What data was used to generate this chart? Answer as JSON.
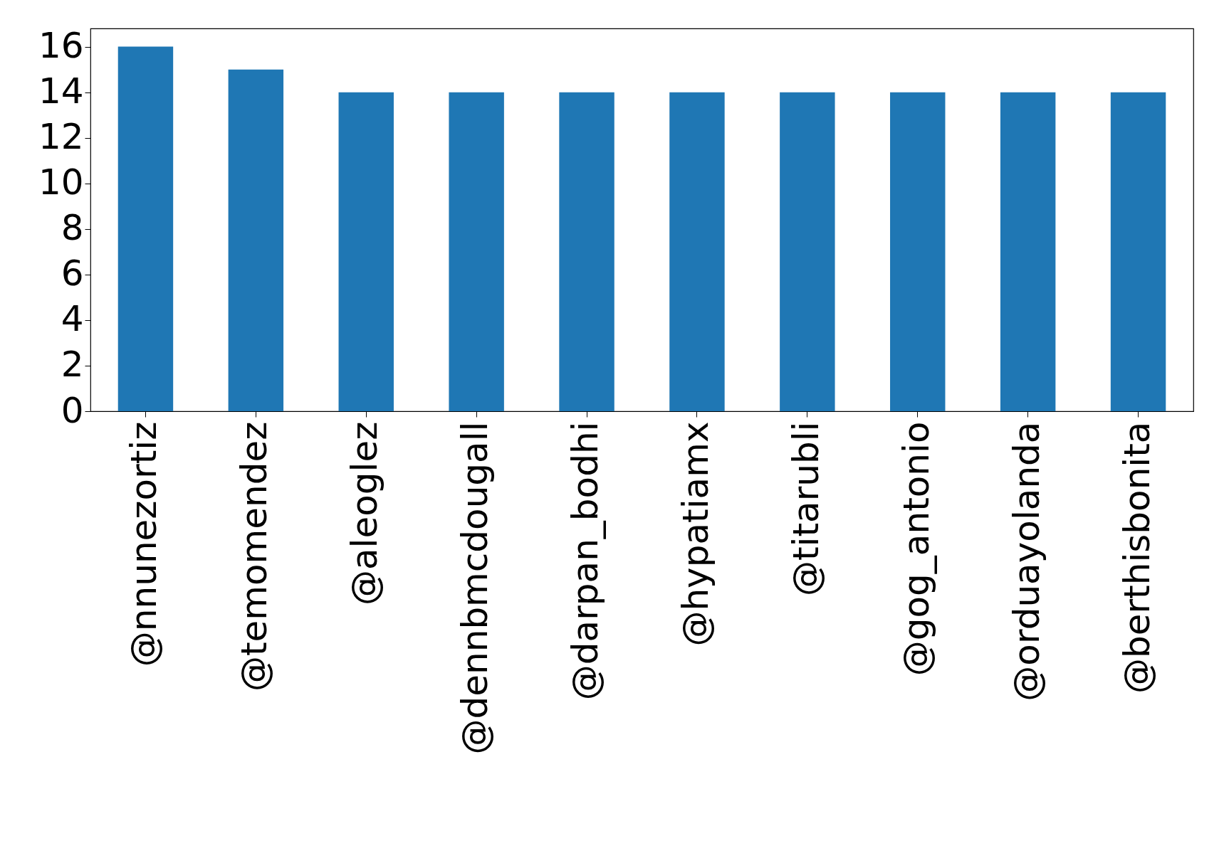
{
  "chart_data": {
    "type": "bar",
    "categories": [
      "@nnunezortiz",
      "@temomendez",
      "@aleoglez",
      "@dennbmcdougall",
      "@darpan_bodhi",
      "@hypatiamx",
      "@titarubli",
      "@gog_antonio",
      "@orduayolanda",
      "@berthisbonita"
    ],
    "values": [
      16,
      15,
      14,
      14,
      14,
      14,
      14,
      14,
      14,
      14
    ],
    "color": "#1f77b4",
    "ylim": [
      0,
      16.8
    ],
    "yticks": [
      0,
      2,
      4,
      6,
      8,
      10,
      12,
      14,
      16
    ],
    "grid": false
  }
}
